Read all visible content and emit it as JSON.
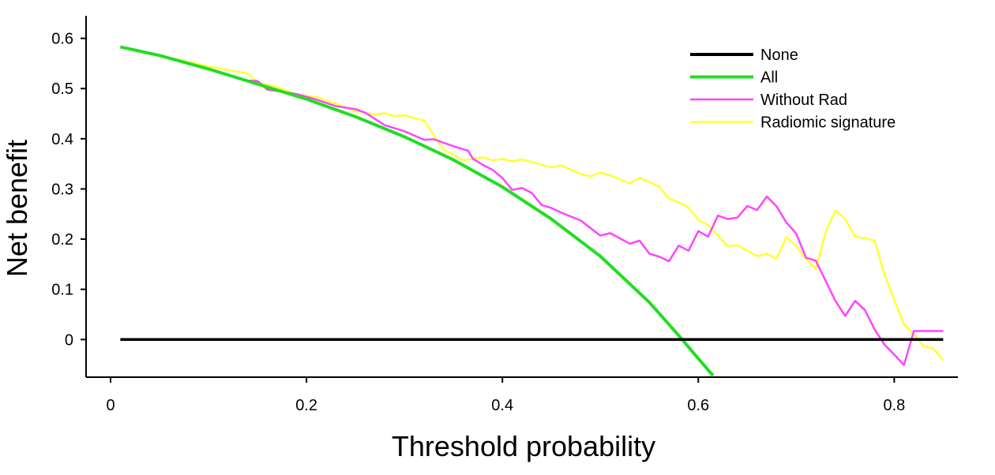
{
  "chart_data": {
    "type": "line",
    "xlabel": "Threshold probability",
    "ylabel": "Net benefit",
    "xlim": [
      -0.025,
      0.865
    ],
    "ylim": [
      -0.075,
      0.645
    ],
    "xticks": [
      0,
      0.2,
      0.4,
      0.6,
      0.8
    ],
    "yticks": [
      0,
      0.1,
      0.2,
      0.3,
      0.4,
      0.5,
      0.6
    ],
    "xtick_labels": [
      "0",
      "0.2",
      "0.4",
      "0.6",
      "0.8"
    ],
    "ytick_labels": [
      "0",
      "0.1",
      "0.2",
      "0.3",
      "0.4",
      "0.5",
      "0.6"
    ],
    "grid": false,
    "legend": {
      "position": "top-right"
    },
    "series": [
      {
        "name": "None",
        "color": "#000000",
        "points": [
          [
            0.01,
            0
          ],
          [
            0.85,
            0
          ]
        ]
      },
      {
        "name": "All",
        "color": "#22dd22",
        "points": [
          [
            0.01,
            0.583
          ],
          [
            0.05,
            0.566
          ],
          [
            0.1,
            0.539
          ],
          [
            0.15,
            0.509
          ],
          [
            0.2,
            0.479
          ],
          [
            0.25,
            0.444
          ],
          [
            0.3,
            0.404
          ],
          [
            0.35,
            0.358
          ],
          [
            0.4,
            0.304
          ],
          [
            0.45,
            0.24
          ],
          [
            0.5,
            0.166
          ],
          [
            0.55,
            0.074
          ],
          [
            0.58,
            0.008
          ],
          [
            0.6,
            -0.038
          ],
          [
            0.615,
            -0.072
          ]
        ]
      },
      {
        "name": "Without Rad",
        "color": "#ff44ff",
        "points": [
          [
            0.01,
            0.583
          ],
          [
            0.05,
            0.566
          ],
          [
            0.1,
            0.539
          ],
          [
            0.13,
            0.52
          ],
          [
            0.14,
            0.516
          ],
          [
            0.15,
            0.515
          ],
          [
            0.16,
            0.498
          ],
          [
            0.17,
            0.495
          ],
          [
            0.19,
            0.489
          ],
          [
            0.21,
            0.478
          ],
          [
            0.23,
            0.465
          ],
          [
            0.25,
            0.459
          ],
          [
            0.26,
            0.452
          ],
          [
            0.28,
            0.427
          ],
          [
            0.3,
            0.415
          ],
          [
            0.32,
            0.398
          ],
          [
            0.33,
            0.399
          ],
          [
            0.34,
            0.392
          ],
          [
            0.355,
            0.382
          ],
          [
            0.365,
            0.376
          ],
          [
            0.37,
            0.36
          ],
          [
            0.38,
            0.348
          ],
          [
            0.39,
            0.338
          ],
          [
            0.4,
            0.322
          ],
          [
            0.41,
            0.298
          ],
          [
            0.42,
            0.302
          ],
          [
            0.43,
            0.292
          ],
          [
            0.44,
            0.268
          ],
          [
            0.45,
            0.262
          ],
          [
            0.46,
            0.253
          ],
          [
            0.48,
            0.237
          ],
          [
            0.5,
            0.207
          ],
          [
            0.51,
            0.212
          ],
          [
            0.53,
            0.191
          ],
          [
            0.54,
            0.197
          ],
          [
            0.55,
            0.171
          ],
          [
            0.56,
            0.165
          ],
          [
            0.57,
            0.156
          ],
          [
            0.58,
            0.187
          ],
          [
            0.59,
            0.177
          ],
          [
            0.6,
            0.216
          ],
          [
            0.61,
            0.205
          ],
          [
            0.62,
            0.247
          ],
          [
            0.63,
            0.24
          ],
          [
            0.64,
            0.243
          ],
          [
            0.65,
            0.266
          ],
          [
            0.66,
            0.258
          ],
          [
            0.67,
            0.285
          ],
          [
            0.68,
            0.265
          ],
          [
            0.69,
            0.233
          ],
          [
            0.7,
            0.211
          ],
          [
            0.71,
            0.163
          ],
          [
            0.72,
            0.157
          ],
          [
            0.73,
            0.117
          ],
          [
            0.74,
            0.077
          ],
          [
            0.75,
            0.047
          ],
          [
            0.76,
            0.077
          ],
          [
            0.77,
            0.059
          ],
          [
            0.78,
            0.02
          ],
          [
            0.79,
            -0.01
          ],
          [
            0.8,
            -0.03
          ],
          [
            0.81,
            -0.051
          ],
          [
            0.82,
            0.017
          ],
          [
            0.85,
            0.017
          ]
        ]
      },
      {
        "name": "Radiomic signature",
        "color": "#ffff33",
        "points": [
          [
            0.01,
            0.583
          ],
          [
            0.05,
            0.566
          ],
          [
            0.1,
            0.544
          ],
          [
            0.14,
            0.53
          ],
          [
            0.15,
            0.512
          ],
          [
            0.17,
            0.503
          ],
          [
            0.19,
            0.488
          ],
          [
            0.21,
            0.483
          ],
          [
            0.23,
            0.47
          ],
          [
            0.25,
            0.455
          ],
          [
            0.27,
            0.448
          ],
          [
            0.28,
            0.451
          ],
          [
            0.29,
            0.445
          ],
          [
            0.3,
            0.447
          ],
          [
            0.32,
            0.436
          ],
          [
            0.33,
            0.407
          ],
          [
            0.34,
            0.378
          ],
          [
            0.35,
            0.368
          ],
          [
            0.36,
            0.357
          ],
          [
            0.38,
            0.363
          ],
          [
            0.39,
            0.357
          ],
          [
            0.4,
            0.36
          ],
          [
            0.41,
            0.355
          ],
          [
            0.42,
            0.359
          ],
          [
            0.45,
            0.343
          ],
          [
            0.46,
            0.347
          ],
          [
            0.48,
            0.33
          ],
          [
            0.49,
            0.325
          ],
          [
            0.5,
            0.333
          ],
          [
            0.51,
            0.327
          ],
          [
            0.53,
            0.311
          ],
          [
            0.54,
            0.322
          ],
          [
            0.55,
            0.314
          ],
          [
            0.56,
            0.304
          ],
          [
            0.57,
            0.281
          ],
          [
            0.58,
            0.273
          ],
          [
            0.59,
            0.263
          ],
          [
            0.6,
            0.238
          ],
          [
            0.61,
            0.228
          ],
          [
            0.62,
            0.207
          ],
          [
            0.63,
            0.186
          ],
          [
            0.64,
            0.188
          ],
          [
            0.65,
            0.177
          ],
          [
            0.66,
            0.166
          ],
          [
            0.67,
            0.171
          ],
          [
            0.68,
            0.161
          ],
          [
            0.69,
            0.204
          ],
          [
            0.7,
            0.186
          ],
          [
            0.71,
            0.16
          ],
          [
            0.72,
            0.141
          ],
          [
            0.73,
            0.214
          ],
          [
            0.74,
            0.257
          ],
          [
            0.75,
            0.24
          ],
          [
            0.76,
            0.205
          ],
          [
            0.77,
            0.202
          ],
          [
            0.78,
            0.197
          ],
          [
            0.79,
            0.13
          ],
          [
            0.8,
            0.079
          ],
          [
            0.81,
            0.03
          ],
          [
            0.82,
            0.01
          ],
          [
            0.83,
            -0.013
          ],
          [
            0.84,
            -0.018
          ],
          [
            0.85,
            -0.041
          ]
        ]
      }
    ]
  }
}
